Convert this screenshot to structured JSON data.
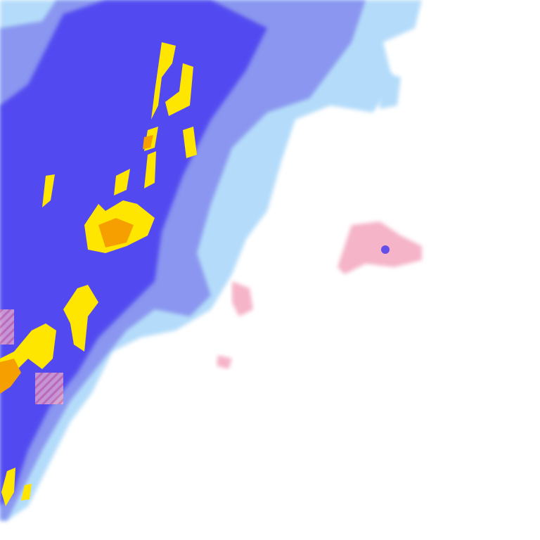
{
  "map": {
    "type": "weather-radar-tile",
    "legend_colors": {
      "light_precip": "#b4dcfa",
      "moderate_precip": "#8a96f0",
      "heavy_precip": "#4a3cf0",
      "intense_precip": "#ffe600",
      "very_intense_precip": "#f5a000",
      "mixed_precip": "#f5b4c8",
      "mixed_heavy": "#e0508c"
    }
  }
}
